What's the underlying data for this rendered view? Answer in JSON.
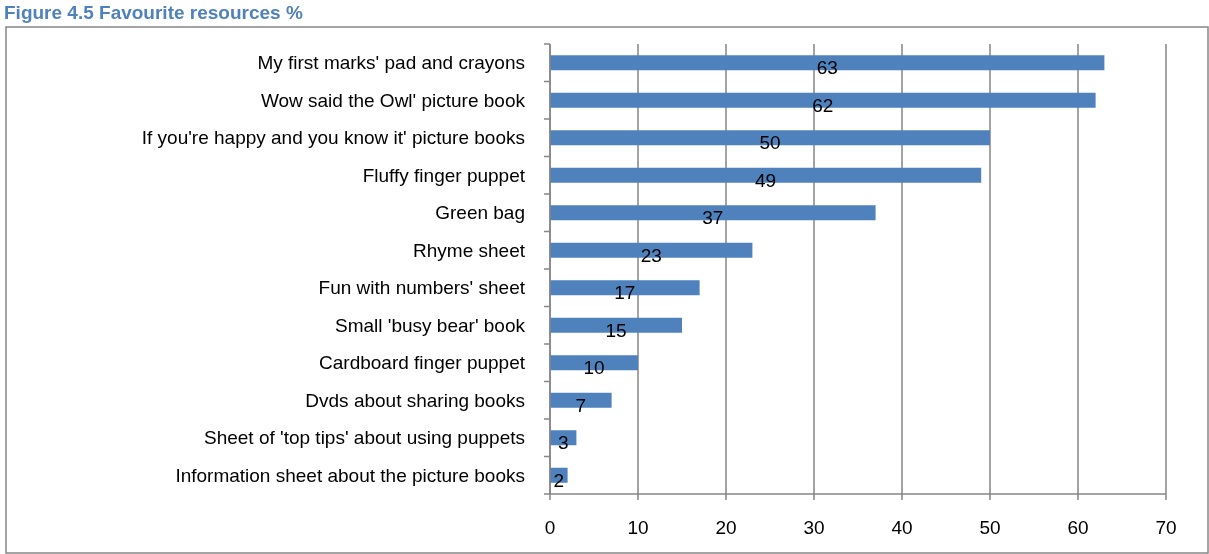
{
  "chart_data": {
    "type": "bar",
    "orientation": "horizontal",
    "title": "Figure 4.5 Favourite resources %",
    "categories": [
      "My first marks' pad and crayons",
      "Wow said the Owl' picture book",
      "If you're happy and you know it' picture books",
      "Fluffy finger puppet",
      "Green bag",
      "Rhyme sheet",
      "Fun with numbers' sheet",
      "Small 'busy bear' book",
      "Cardboard finger puppet",
      "Dvds about sharing books",
      "Sheet of 'top tips' about using puppets",
      "Information sheet about the picture books"
    ],
    "values": [
      63,
      62,
      50,
      49,
      37,
      23,
      17,
      15,
      10,
      7,
      3,
      2
    ],
    "color": "#4f81bd",
    "xlim": [
      0,
      70
    ],
    "xticks": [
      0,
      10,
      20,
      30,
      40,
      50,
      60,
      70
    ],
    "grid": "x",
    "data_labels": true
  }
}
